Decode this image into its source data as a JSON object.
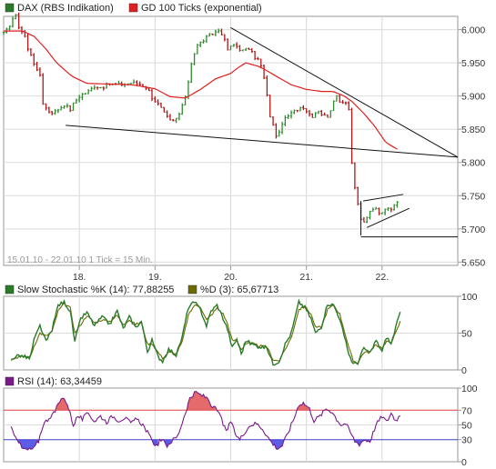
{
  "chart_data": [
    {
      "type": "line",
      "panel": "price",
      "legend": [
        {
          "label": "DAX (RBS Indikation)",
          "color": "#2a7a2a"
        },
        {
          "label": "GD 100 Ticks (exponential)",
          "color": "#e02020"
        }
      ],
      "footnote": "15.01.10 - 22.01.10   1 Tick = 15 Min.",
      "x_tick_labels": [
        {
          "label": "18.",
          "day": 1
        },
        {
          "label": "19.",
          "day": 2
        },
        {
          "label": "20.",
          "day": 3
        },
        {
          "label": "21.",
          "day": 4
        },
        {
          "label": "22.",
          "day": 5
        }
      ],
      "y_ticks": [
        "6.000",
        "5.950",
        "5.900",
        "5.850",
        "5.800",
        "5.750",
        "5.700",
        "5.650"
      ],
      "y_values": [
        6000,
        5950,
        5900,
        5850,
        5800,
        5750,
        5700,
        5650
      ],
      "ylim": [
        5645,
        6020
      ],
      "x_range_days": [
        0,
        6
      ],
      "grid": true,
      "price_anchors": [
        [
          0.0,
          5994
        ],
        [
          0.05,
          6000
        ],
        [
          0.1,
          6012
        ],
        [
          0.15,
          6024
        ],
        [
          0.2,
          6005
        ],
        [
          0.28,
          5990
        ],
        [
          0.32,
          5970
        ],
        [
          0.38,
          5960
        ],
        [
          0.42,
          5940
        ],
        [
          0.48,
          5932
        ],
        [
          0.52,
          5890
        ],
        [
          0.58,
          5878
        ],
        [
          0.66,
          5875
        ],
        [
          0.72,
          5880
        ],
        [
          0.8,
          5887
        ],
        [
          0.88,
          5880
        ],
        [
          0.94,
          5892
        ],
        [
          1.02,
          5902
        ],
        [
          1.1,
          5905
        ],
        [
          1.2,
          5915
        ],
        [
          1.3,
          5913
        ],
        [
          1.4,
          5918
        ],
        [
          1.5,
          5917
        ],
        [
          1.6,
          5918
        ],
        [
          1.7,
          5920
        ],
        [
          1.8,
          5918
        ],
        [
          1.9,
          5912
        ],
        [
          1.96,
          5898
        ],
        [
          2.06,
          5885
        ],
        [
          2.14,
          5870
        ],
        [
          2.22,
          5860
        ],
        [
          2.3,
          5868
        ],
        [
          2.35,
          5880
        ],
        [
          2.42,
          5908
        ],
        [
          2.48,
          5950
        ],
        [
          2.55,
          5975
        ],
        [
          2.62,
          5982
        ],
        [
          2.7,
          5990
        ],
        [
          2.78,
          5995
        ],
        [
          2.86,
          6000
        ],
        [
          2.9,
          5990
        ],
        [
          2.96,
          5970
        ],
        [
          3.05,
          5978
        ],
        [
          3.15,
          5968
        ],
        [
          3.25,
          5972
        ],
        [
          3.3,
          5960
        ],
        [
          3.36,
          5955
        ],
        [
          3.42,
          5940
        ],
        [
          3.48,
          5900
        ],
        [
          3.52,
          5870
        ],
        [
          3.58,
          5848
        ],
        [
          3.62,
          5835
        ],
        [
          3.68,
          5860
        ],
        [
          3.76,
          5870
        ],
        [
          3.85,
          5878
        ],
        [
          3.95,
          5885
        ],
        [
          4.02,
          5875
        ],
        [
          4.08,
          5870
        ],
        [
          4.15,
          5880
        ],
        [
          4.22,
          5870
        ],
        [
          4.28,
          5870
        ],
        [
          4.34,
          5885
        ],
        [
          4.4,
          5900
        ],
        [
          4.46,
          5890
        ],
        [
          4.52,
          5892
        ],
        [
          4.56,
          5880
        ],
        [
          4.6,
          5800
        ],
        [
          4.64,
          5760
        ],
        [
          4.7,
          5725
        ],
        [
          4.74,
          5705
        ],
        [
          4.8,
          5718
        ],
        [
          4.86,
          5728
        ],
        [
          4.92,
          5730
        ],
        [
          4.98,
          5722
        ],
        [
          5.04,
          5732
        ],
        [
          5.1,
          5728
        ],
        [
          5.16,
          5738
        ],
        [
          5.2,
          5742
        ]
      ],
      "ema_anchors": [
        [
          0.0,
          5998
        ],
        [
          0.25,
          5998
        ],
        [
          0.4,
          5990
        ],
        [
          0.55,
          5972
        ],
        [
          0.7,
          5950
        ],
        [
          0.9,
          5930
        ],
        [
          1.1,
          5919
        ],
        [
          1.4,
          5918
        ],
        [
          1.7,
          5917
        ],
        [
          2.0,
          5911
        ],
        [
          2.2,
          5899
        ],
        [
          2.4,
          5897
        ],
        [
          2.6,
          5910
        ],
        [
          2.8,
          5926
        ],
        [
          3.0,
          5934
        ],
        [
          3.1,
          5943
        ],
        [
          3.2,
          5950
        ],
        [
          3.36,
          5945
        ],
        [
          3.45,
          5940
        ],
        [
          3.6,
          5930
        ],
        [
          3.8,
          5917
        ],
        [
          4.0,
          5910
        ],
        [
          4.2,
          5907
        ],
        [
          4.35,
          5907
        ],
        [
          4.5,
          5900
        ],
        [
          4.6,
          5892
        ],
        [
          4.75,
          5875
        ],
        [
          4.9,
          5855
        ],
        [
          5.05,
          5830
        ],
        [
          5.2,
          5820
        ]
      ],
      "trendlines": [
        [
          [
            0.82,
            5856
          ],
          [
            6.0,
            5808
          ]
        ],
        [
          [
            3.0,
            6003
          ],
          [
            6.0,
            5808
          ]
        ],
        [
          [
            4.72,
            5688
          ],
          [
            6.0,
            5688
          ]
        ],
        [
          [
            4.72,
            5690
          ],
          [
            4.72,
            5742
          ]
        ],
        [
          [
            4.75,
            5742
          ],
          [
            5.28,
            5752
          ]
        ],
        [
          [
            4.8,
            5702
          ],
          [
            5.36,
            5731
          ]
        ]
      ]
    },
    {
      "type": "line",
      "panel": "stochastic",
      "legend": [
        {
          "label": "Slow Stochastic %K (14): 77,88255",
          "color": "#2a7a2a"
        },
        {
          "label": "%D (3): 65,67713",
          "color": "#6b6b00"
        }
      ],
      "y_ticks": [
        "100",
        "50",
        "0"
      ],
      "y_values": [
        100,
        50,
        0
      ],
      "ylim": [
        0,
        100
      ],
      "k_anchors": [
        [
          0.1,
          15
        ],
        [
          0.2,
          20
        ],
        [
          0.3,
          17
        ],
        [
          0.35,
          15
        ],
        [
          0.4,
          40
        ],
        [
          0.48,
          60
        ],
        [
          0.56,
          38
        ],
        [
          0.64,
          55
        ],
        [
          0.72,
          88
        ],
        [
          0.8,
          92
        ],
        [
          0.88,
          80
        ],
        [
          0.94,
          38
        ],
        [
          1.02,
          70
        ],
        [
          1.1,
          78
        ],
        [
          1.2,
          60
        ],
        [
          1.3,
          72
        ],
        [
          1.4,
          62
        ],
        [
          1.5,
          80
        ],
        [
          1.58,
          56
        ],
        [
          1.66,
          72
        ],
        [
          1.74,
          58
        ],
        [
          1.82,
          66
        ],
        [
          1.9,
          25
        ],
        [
          1.96,
          40
        ],
        [
          2.04,
          18
        ],
        [
          2.1,
          12
        ],
        [
          2.18,
          28
        ],
        [
          2.28,
          20
        ],
        [
          2.36,
          45
        ],
        [
          2.44,
          85
        ],
        [
          2.52,
          92
        ],
        [
          2.6,
          82
        ],
        [
          2.68,
          60
        ],
        [
          2.74,
          80
        ],
        [
          2.82,
          88
        ],
        [
          2.9,
          70
        ],
        [
          2.96,
          55
        ],
        [
          3.02,
          30
        ],
        [
          3.08,
          42
        ],
        [
          3.14,
          22
        ],
        [
          3.2,
          40
        ],
        [
          3.28,
          35
        ],
        [
          3.36,
          32
        ],
        [
          3.48,
          30
        ],
        [
          3.56,
          8
        ],
        [
          3.64,
          12
        ],
        [
          3.72,
          35
        ],
        [
          3.8,
          50
        ],
        [
          3.9,
          92
        ],
        [
          3.98,
          85
        ],
        [
          4.06,
          70
        ],
        [
          4.12,
          50
        ],
        [
          4.2,
          60
        ],
        [
          4.28,
          90
        ],
        [
          4.36,
          88
        ],
        [
          4.44,
          70
        ],
        [
          4.5,
          45
        ],
        [
          4.56,
          22
        ],
        [
          4.62,
          8
        ],
        [
          4.68,
          10
        ],
        [
          4.76,
          30
        ],
        [
          4.84,
          22
        ],
        [
          4.92,
          40
        ],
        [
          5.0,
          25
        ],
        [
          5.06,
          45
        ],
        [
          5.12,
          35
        ],
        [
          5.18,
          58
        ],
        [
          5.24,
          77.88
        ]
      ],
      "d_anchors": [
        [
          0.1,
          14
        ],
        [
          0.2,
          18
        ],
        [
          0.3,
          18
        ],
        [
          0.35,
          17
        ],
        [
          0.4,
          32
        ],
        [
          0.48,
          50
        ],
        [
          0.56,
          46
        ],
        [
          0.64,
          52
        ],
        [
          0.72,
          80
        ],
        [
          0.8,
          90
        ],
        [
          0.88,
          84
        ],
        [
          0.94,
          50
        ],
        [
          1.02,
          62
        ],
        [
          1.1,
          74
        ],
        [
          1.2,
          64
        ],
        [
          1.3,
          68
        ],
        [
          1.4,
          66
        ],
        [
          1.5,
          74
        ],
        [
          1.58,
          62
        ],
        [
          1.66,
          68
        ],
        [
          1.74,
          62
        ],
        [
          1.82,
          64
        ],
        [
          1.9,
          35
        ],
        [
          1.96,
          36
        ],
        [
          2.04,
          24
        ],
        [
          2.1,
          16
        ],
        [
          2.18,
          24
        ],
        [
          2.28,
          22
        ],
        [
          2.36,
          38
        ],
        [
          2.44,
          74
        ],
        [
          2.52,
          88
        ],
        [
          2.6,
          86
        ],
        [
          2.68,
          68
        ],
        [
          2.74,
          74
        ],
        [
          2.82,
          84
        ],
        [
          2.9,
          76
        ],
        [
          2.96,
          62
        ],
        [
          3.02,
          40
        ],
        [
          3.08,
          40
        ],
        [
          3.14,
          28
        ],
        [
          3.2,
          36
        ],
        [
          3.28,
          36
        ],
        [
          3.36,
          33
        ],
        [
          3.48,
          31
        ],
        [
          3.56,
          14
        ],
        [
          3.64,
          12
        ],
        [
          3.72,
          28
        ],
        [
          3.8,
          44
        ],
        [
          3.9,
          82
        ],
        [
          3.98,
          86
        ],
        [
          4.06,
          76
        ],
        [
          4.12,
          58
        ],
        [
          4.2,
          58
        ],
        [
          4.28,
          82
        ],
        [
          4.36,
          88
        ],
        [
          4.44,
          76
        ],
        [
          4.5,
          54
        ],
        [
          4.56,
          30
        ],
        [
          4.62,
          12
        ],
        [
          4.68,
          10
        ],
        [
          4.76,
          24
        ],
        [
          4.84,
          24
        ],
        [
          4.92,
          34
        ],
        [
          5.0,
          30
        ],
        [
          5.06,
          38
        ],
        [
          5.12,
          38
        ],
        [
          5.18,
          50
        ],
        [
          5.24,
          65.68
        ]
      ]
    },
    {
      "type": "line",
      "panel": "rsi",
      "legend": [
        {
          "label": "RSI (14): 63,34459",
          "color": "#7a1a8a"
        }
      ],
      "y_ticks": [
        "100",
        "70",
        "50",
        "30",
        "0"
      ],
      "y_values": [
        100,
        70,
        50,
        30,
        0
      ],
      "ylim": [
        0,
        100
      ],
      "upper_band": 70,
      "lower_band": 30,
      "overbought_fill": "#e05050",
      "oversold_fill": "#4040e0",
      "band_upper_color": "#e04040",
      "band_lower_color": "#4040c0",
      "rsi_anchors": [
        [
          0.1,
          45
        ],
        [
          0.18,
          32
        ],
        [
          0.24,
          18
        ],
        [
          0.32,
          16
        ],
        [
          0.4,
          18
        ],
        [
          0.46,
          28
        ],
        [
          0.52,
          50
        ],
        [
          0.6,
          60
        ],
        [
          0.68,
          68
        ],
        [
          0.74,
          82
        ],
        [
          0.8,
          88
        ],
        [
          0.86,
          72
        ],
        [
          0.92,
          50
        ],
        [
          0.98,
          62
        ],
        [
          1.04,
          58
        ],
        [
          1.12,
          66
        ],
        [
          1.2,
          55
        ],
        [
          1.28,
          62
        ],
        [
          1.36,
          54
        ],
        [
          1.44,
          62
        ],
        [
          1.52,
          56
        ],
        [
          1.6,
          60
        ],
        [
          1.68,
          52
        ],
        [
          1.76,
          58
        ],
        [
          1.84,
          50
        ],
        [
          1.9,
          40
        ],
        [
          1.96,
          28
        ],
        [
          2.02,
          22
        ],
        [
          2.08,
          30
        ],
        [
          2.16,
          22
        ],
        [
          2.22,
          28
        ],
        [
          2.3,
          35
        ],
        [
          2.38,
          60
        ],
        [
          2.46,
          86
        ],
        [
          2.54,
          94
        ],
        [
          2.62,
          90
        ],
        [
          2.7,
          86
        ],
        [
          2.76,
          74
        ],
        [
          2.82,
          70
        ],
        [
          2.88,
          58
        ],
        [
          2.94,
          40
        ],
        [
          3.0,
          55
        ],
        [
          3.06,
          38
        ],
        [
          3.12,
          30
        ],
        [
          3.18,
          40
        ],
        [
          3.26,
          50
        ],
        [
          3.34,
          52
        ],
        [
          3.42,
          45
        ],
        [
          3.5,
          32
        ],
        [
          3.56,
          24
        ],
        [
          3.62,
          18
        ],
        [
          3.68,
          22
        ],
        [
          3.76,
          40
        ],
        [
          3.84,
          60
        ],
        [
          3.9,
          78
        ],
        [
          3.96,
          80
        ],
        [
          4.04,
          72
        ],
        [
          4.1,
          56
        ],
        [
          4.18,
          62
        ],
        [
          4.26,
          72
        ],
        [
          4.34,
          68
        ],
        [
          4.4,
          58
        ],
        [
          4.46,
          50
        ],
        [
          4.52,
          52
        ],
        [
          4.58,
          40
        ],
        [
          4.64,
          28
        ],
        [
          4.7,
          24
        ],
        [
          4.76,
          30
        ],
        [
          4.84,
          28
        ],
        [
          4.92,
          50
        ],
        [
          5.0,
          62
        ],
        [
          5.06,
          54
        ],
        [
          5.12,
          66
        ],
        [
          5.18,
          56
        ],
        [
          5.24,
          63.34
        ]
      ]
    }
  ]
}
